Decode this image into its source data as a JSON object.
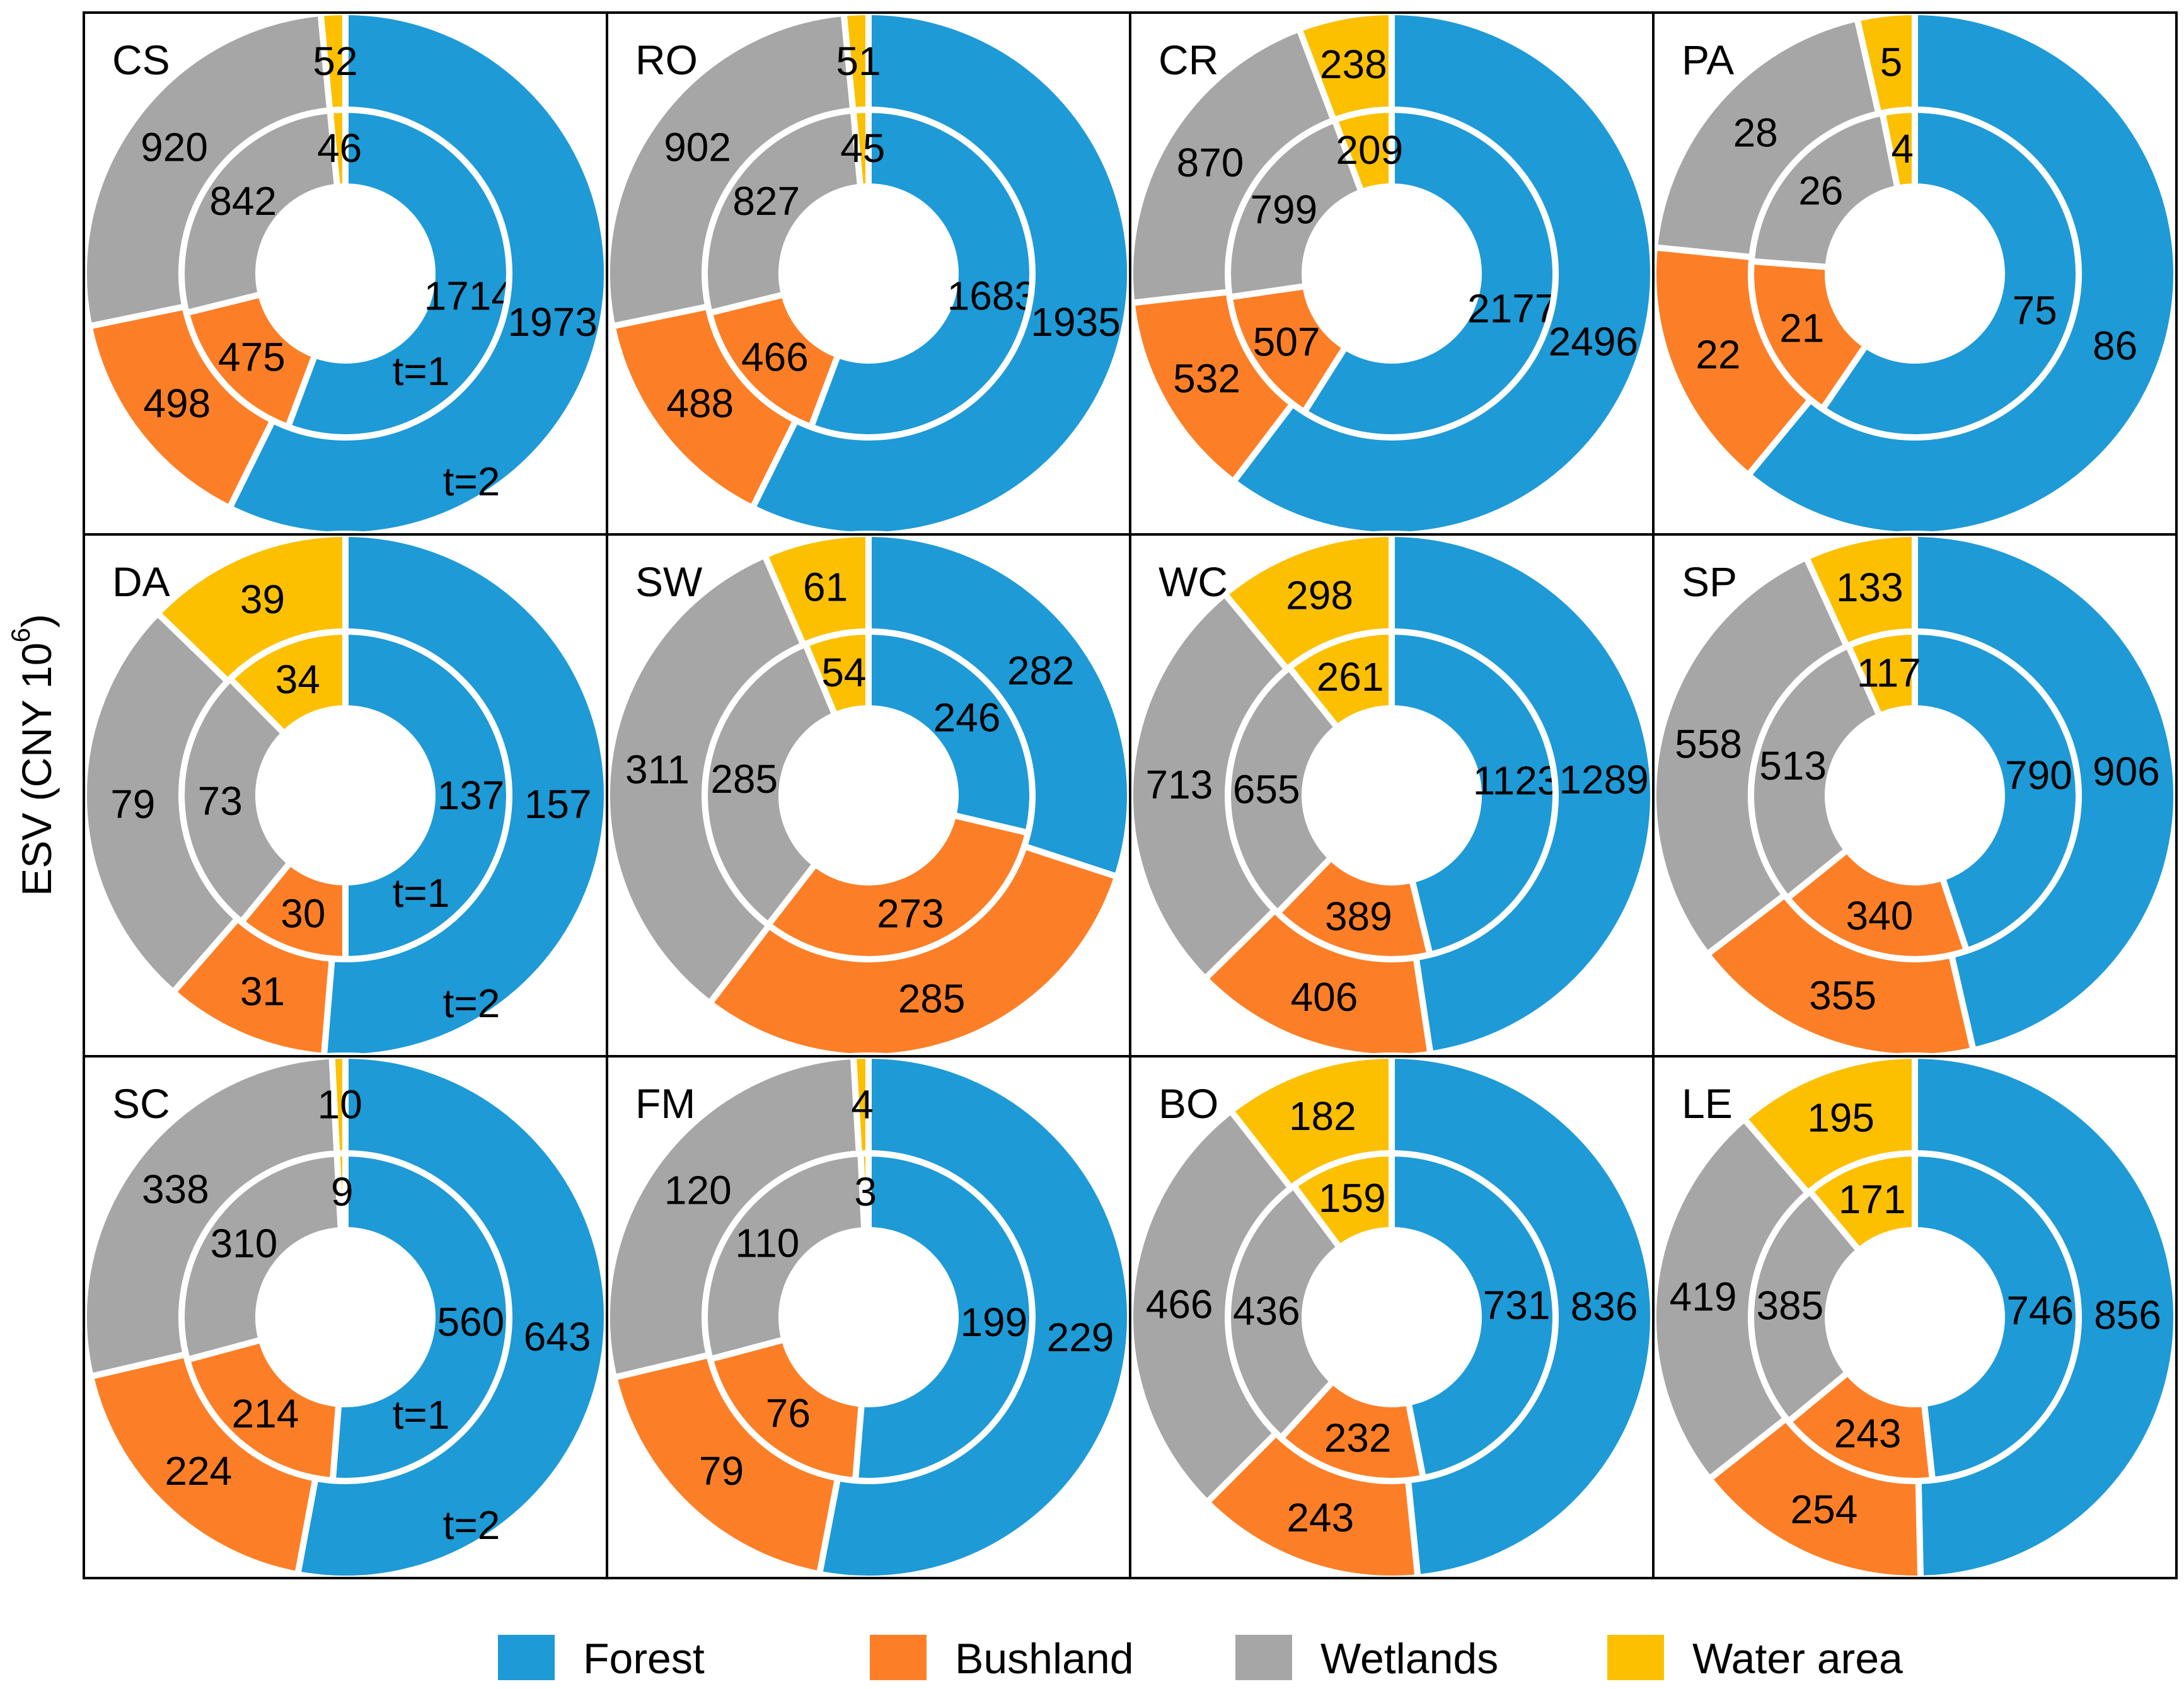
{
  "figure": {
    "ylabel": "ESV (CNY 10",
    "ylabel_sup": "6",
    "ylabel_close": ")"
  },
  "legend": [
    {
      "name": "Forest",
      "color": "#1e9ad6"
    },
    {
      "name": "Bushland",
      "color": "#fc7f27"
    },
    {
      "name": "Wetlands",
      "color": "#a6a6a6"
    },
    {
      "name": "Water area",
      "color": "#fcc000"
    }
  ],
  "ring_labels": {
    "inner": "t=1",
    "outer": "t=2"
  },
  "chart_data": [
    {
      "type": "pie",
      "title": "CS",
      "categories": [
        "Forest",
        "Bushland",
        "Wetlands",
        "Water area"
      ],
      "series": [
        {
          "name": "t=1",
          "values": [
            1714,
            475,
            842,
            46
          ]
        },
        {
          "name": "t=2",
          "values": [
            1973,
            498,
            920,
            52
          ]
        }
      ],
      "show_ring_labels": true
    },
    {
      "type": "pie",
      "title": "RO",
      "categories": [
        "Forest",
        "Bushland",
        "Wetlands",
        "Water area"
      ],
      "series": [
        {
          "name": "t=1",
          "values": [
            1683,
            466,
            827,
            45
          ]
        },
        {
          "name": "t=2",
          "values": [
            1935,
            488,
            902,
            51
          ]
        }
      ],
      "show_ring_labels": false
    },
    {
      "type": "pie",
      "title": "CR",
      "categories": [
        "Forest",
        "Bushland",
        "Wetlands",
        "Water area"
      ],
      "series": [
        {
          "name": "t=1",
          "values": [
            2177,
            507,
            799,
            209
          ]
        },
        {
          "name": "t=2",
          "values": [
            2496,
            532,
            870,
            238
          ]
        }
      ],
      "show_ring_labels": false
    },
    {
      "type": "pie",
      "title": "PA",
      "categories": [
        "Forest",
        "Bushland",
        "Wetlands",
        "Water area"
      ],
      "series": [
        {
          "name": "t=1",
          "values": [
            75,
            21,
            26,
            4
          ]
        },
        {
          "name": "t=2",
          "values": [
            86,
            22,
            28,
            5
          ]
        }
      ],
      "show_ring_labels": false
    },
    {
      "type": "pie",
      "title": "DA",
      "categories": [
        "Forest",
        "Bushland",
        "Wetlands",
        "Water area"
      ],
      "series": [
        {
          "name": "t=1",
          "values": [
            137,
            30,
            73,
            34
          ]
        },
        {
          "name": "t=2",
          "values": [
            157,
            31,
            79,
            39
          ]
        }
      ],
      "show_ring_labels": true
    },
    {
      "type": "pie",
      "title": "SW",
      "categories": [
        "Forest",
        "Bushland",
        "Wetlands",
        "Water area"
      ],
      "series": [
        {
          "name": "t=1",
          "values": [
            246,
            273,
            285,
            54
          ]
        },
        {
          "name": "t=2",
          "values": [
            282,
            285,
            311,
            61
          ]
        }
      ],
      "show_ring_labels": false
    },
    {
      "type": "pie",
      "title": "WC",
      "categories": [
        "Forest",
        "Bushland",
        "Wetlands",
        "Water area"
      ],
      "series": [
        {
          "name": "t=1",
          "values": [
            1123,
            389,
            655,
            261
          ]
        },
        {
          "name": "t=2",
          "values": [
            1289,
            406,
            713,
            298
          ]
        }
      ],
      "show_ring_labels": false
    },
    {
      "type": "pie",
      "title": "SP",
      "categories": [
        "Forest",
        "Bushland",
        "Wetlands",
        "Water area"
      ],
      "series": [
        {
          "name": "t=1",
          "values": [
            790,
            340,
            513,
            117
          ]
        },
        {
          "name": "t=2",
          "values": [
            906,
            355,
            558,
            133
          ]
        }
      ],
      "show_ring_labels": false
    },
    {
      "type": "pie",
      "title": "SC",
      "categories": [
        "Forest",
        "Bushland",
        "Wetlands",
        "Water area"
      ],
      "series": [
        {
          "name": "t=1",
          "values": [
            560,
            214,
            310,
            9
          ]
        },
        {
          "name": "t=2",
          "values": [
            643,
            224,
            338,
            10
          ]
        }
      ],
      "show_ring_labels": true
    },
    {
      "type": "pie",
      "title": "FM",
      "categories": [
        "Forest",
        "Bushland",
        "Wetlands",
        "Water area"
      ],
      "series": [
        {
          "name": "t=1",
          "values": [
            199,
            76,
            110,
            3
          ]
        },
        {
          "name": "t=2",
          "values": [
            229,
            79,
            120,
            4
          ]
        }
      ],
      "show_ring_labels": false
    },
    {
      "type": "pie",
      "title": "BO",
      "categories": [
        "Forest",
        "Bushland",
        "Wetlands",
        "Water area"
      ],
      "series": [
        {
          "name": "t=1",
          "values": [
            731,
            232,
            436,
            159
          ]
        },
        {
          "name": "t=2",
          "values": [
            836,
            243,
            466,
            182
          ]
        }
      ],
      "show_ring_labels": false
    },
    {
      "type": "pie",
      "title": "LE",
      "categories": [
        "Forest",
        "Bushland",
        "Wetlands",
        "Water area"
      ],
      "series": [
        {
          "name": "t=1",
          "values": [
            746,
            243,
            385,
            171
          ]
        },
        {
          "name": "t=2",
          "values": [
            856,
            254,
            419,
            195
          ]
        }
      ],
      "show_ring_labels": false
    }
  ]
}
